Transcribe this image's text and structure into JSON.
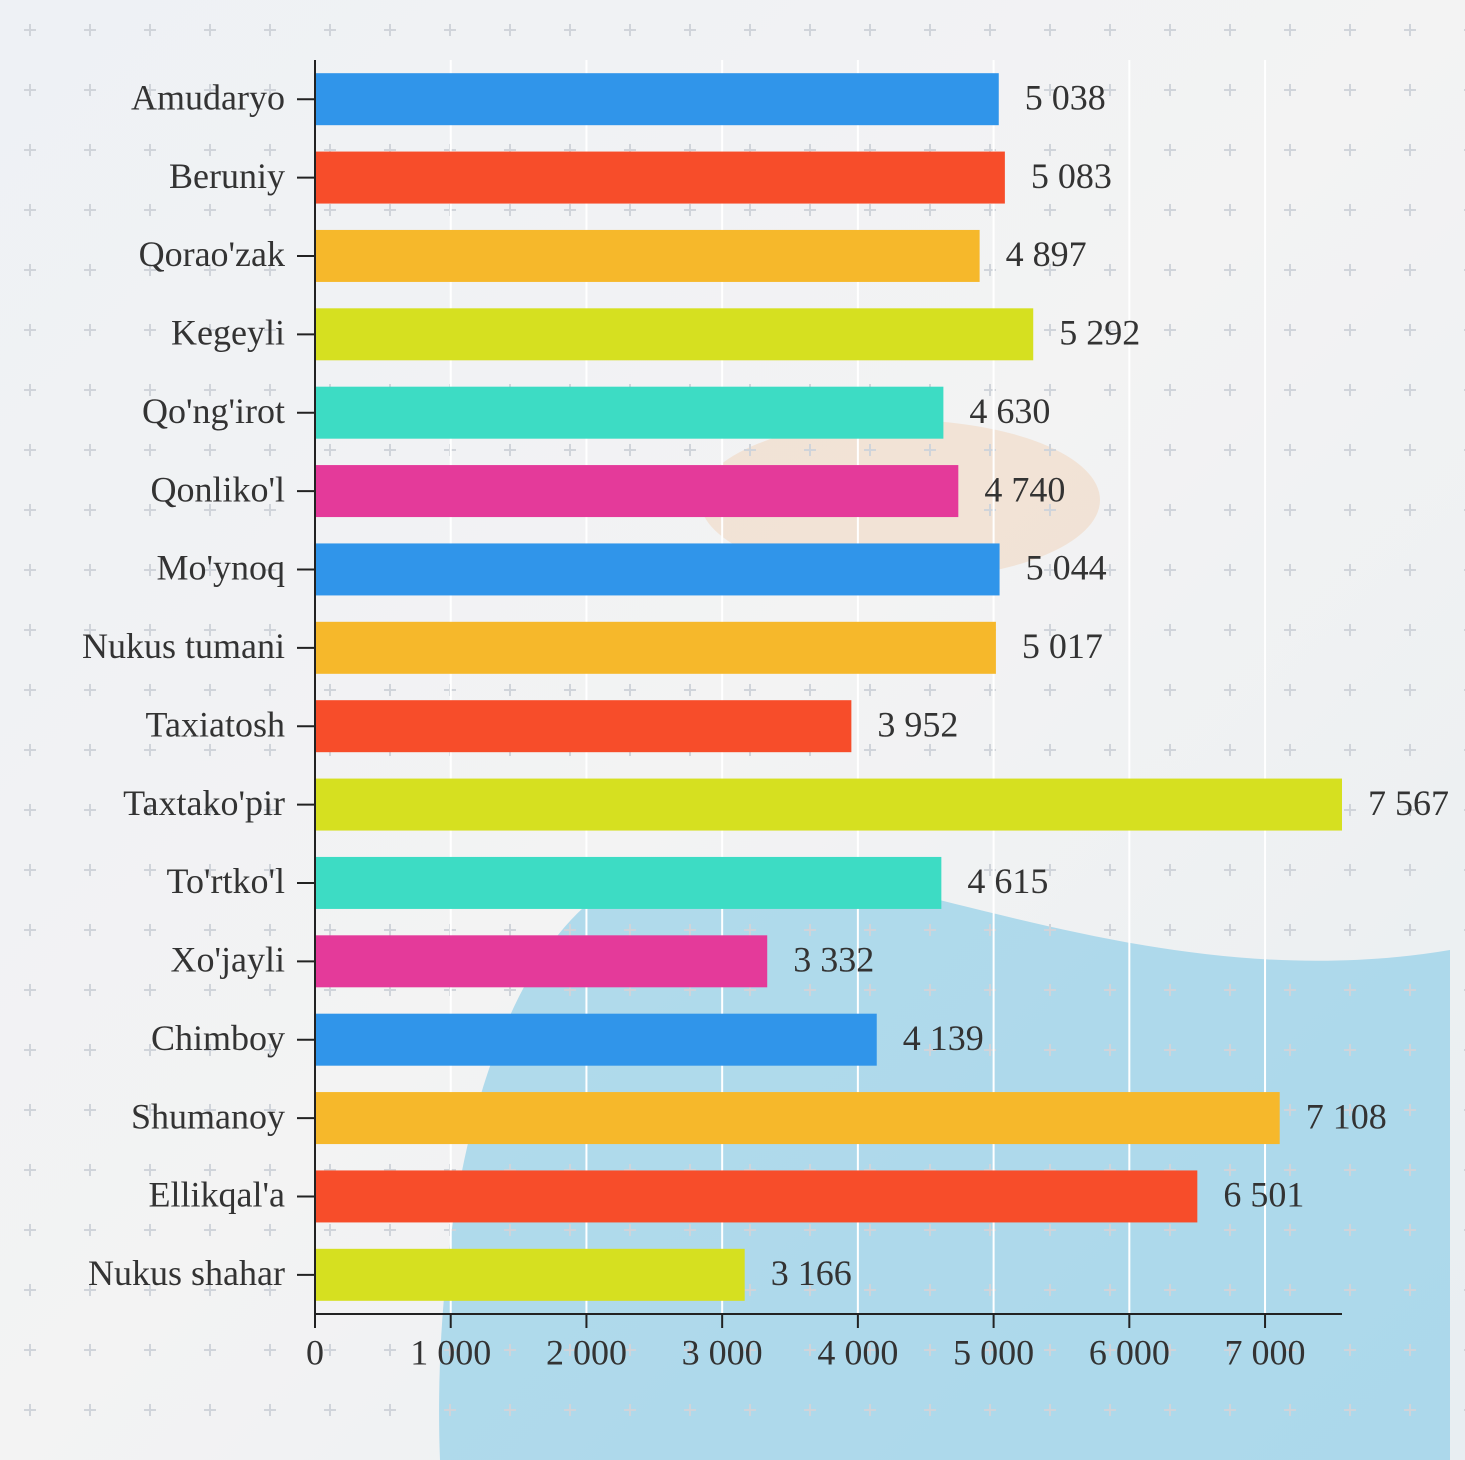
{
  "chart_data": {
    "type": "barh",
    "categories": [
      "Amudaryo",
      "Beruniy",
      "Qorao'zak",
      "Kegeyli",
      "Qo'ng'irot",
      "Qonliko'l",
      "Mo'ynoq",
      "Nukus tumani",
      "Taxiatosh",
      "Taxtako'pir",
      "To'rtko'l",
      "Xo'jayli",
      "Chimboy",
      "Shumanoy",
      "Ellikqal'a",
      "Nukus shahar"
    ],
    "values": [
      5038,
      5083,
      4897,
      5292,
      4630,
      4740,
      5044,
      5017,
      3952,
      7567,
      4615,
      3332,
      4139,
      7108,
      6501,
      3166
    ],
    "value_labels": [
      "5 038",
      "5 083",
      "4 897",
      "5 292",
      "4 630",
      "4 740",
      "5 044",
      "5 017",
      "3 952",
      "7 567",
      "4 615",
      "3 332",
      "4 139",
      "7 108",
      "6 501",
      "3 166"
    ],
    "colors": [
      "#3095ea",
      "#f74d2a",
      "#f6b82b",
      "#d6e020",
      "#3ddcc4",
      "#e43a9a",
      "#3095ea",
      "#f6b82b",
      "#f74d2a",
      "#d6e020",
      "#3ddcc4",
      "#e43a9a",
      "#3095ea",
      "#f6b82b",
      "#f74d2a",
      "#d6e020"
    ],
    "xlim": [
      0,
      7567
    ],
    "xticks": [
      0,
      {
        "value": 1000,
        "label": "1 000"
      },
      {
        "value": 2000,
        "label": "2 000"
      },
      {
        "value": 3000,
        "label": "3 000"
      },
      {
        "value": 4000,
        "label": "4 000"
      },
      {
        "value": 5000,
        "label": "5 000"
      },
      {
        "value": 6000,
        "label": "6 000"
      },
      {
        "value": 7000,
        "label": "7 000"
      }
    ],
    "grid": true
  }
}
